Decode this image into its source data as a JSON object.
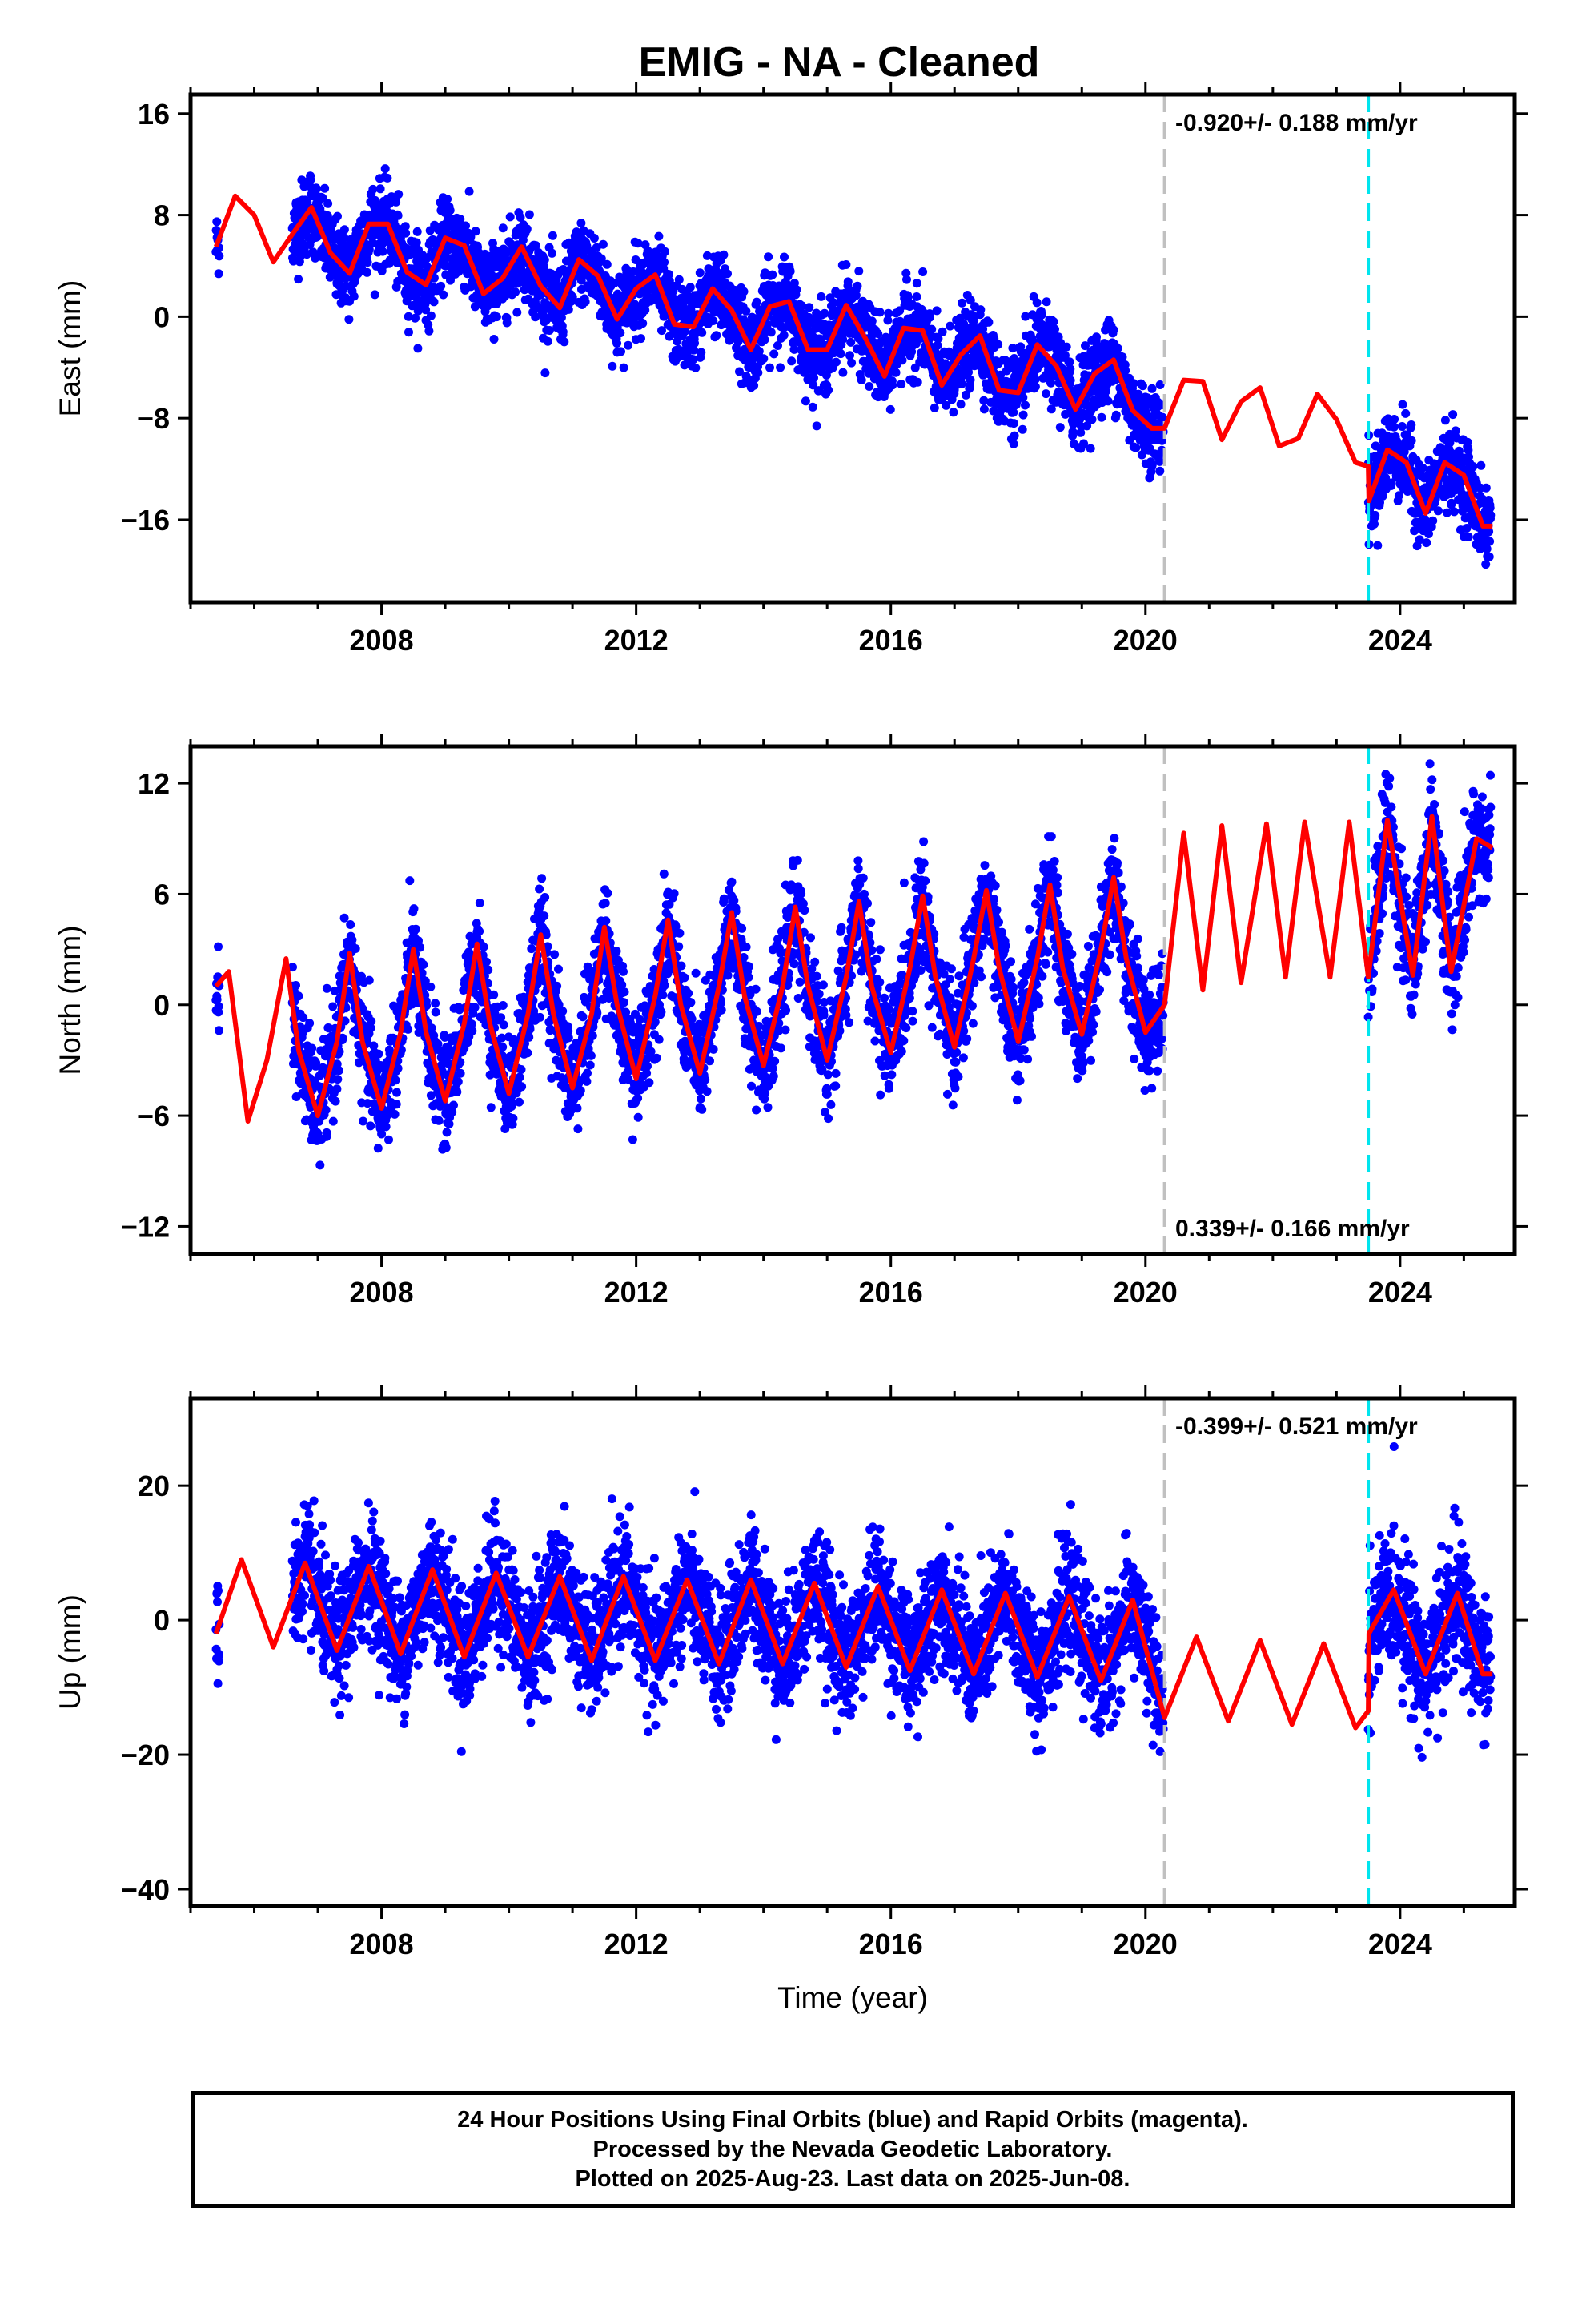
{
  "title": "EMIG  - NA - Cleaned",
  "footer": {
    "line1": "24 Hour Positions Using Final Orbits (blue) and Rapid Orbits (magenta).",
    "line2": "Processed by the Nevada Geodetic Laboratory.",
    "line3": "Plotted on 2025-Aug-23. Last data on 2025-Jun-08."
  },
  "colors": {
    "final_orbits": "#0000ff",
    "model": "#ff0000",
    "break_equipment": "#c0c0c0",
    "break_event": "#00e5ee"
  },
  "xlabel": "Time (year)",
  "chart_data": [
    {
      "type": "scatter",
      "name_panel": "east",
      "ylabel": "East (mm)",
      "xlim": [
        2005.0,
        2025.8
      ],
      "ylim": [
        -22.5,
        17.5
      ],
      "x_ticks": [
        2008,
        2012,
        2016,
        2020,
        2024
      ],
      "y_ticks": [
        16,
        8,
        0,
        -8,
        -16
      ],
      "rate_label": "-0.920+/- 0.188 mm/yr",
      "rate_position": "top-right",
      "breaks": [
        {
          "x": 2020.3,
          "color": "#c0c0c0"
        },
        {
          "x": 2023.5,
          "color": "#00e5ee"
        }
      ],
      "model": {
        "x": [
          2005.4,
          2005.7,
          2006.0,
          2006.3,
          2006.6,
          2006.9,
          2007.2,
          2007.5,
          2007.8,
          2008.1,
          2008.4,
          2008.7,
          2009.0,
          2009.3,
          2009.6,
          2009.9,
          2010.2,
          2010.5,
          2010.8,
          2011.1,
          2011.4,
          2011.7,
          2012.0,
          2012.3,
          2012.6,
          2012.9,
          2013.2,
          2013.5,
          2013.8,
          2014.1,
          2014.4,
          2014.7,
          2015.0,
          2015.3,
          2015.6,
          2015.9,
          2016.2,
          2016.5,
          2016.8,
          2017.1,
          2017.4,
          2017.7,
          2018.0,
          2018.3,
          2018.6,
          2018.9,
          2019.2,
          2019.5,
          2019.8,
          2020.1,
          2020.3,
          2020.6,
          2020.9,
          2021.2,
          2021.5,
          2021.8,
          2022.1,
          2022.4,
          2022.7,
          2023.0,
          2023.3,
          2023.5,
          2023.51,
          2023.8,
          2024.1,
          2024.4,
          2024.7,
          2025.0,
          2025.3,
          2025.45
        ],
        "y": [
          5.5,
          9.5,
          8.0,
          4.3,
          6.5,
          8.6,
          5.0,
          3.4,
          7.3,
          7.3,
          3.5,
          2.5,
          6.2,
          5.6,
          1.8,
          3.0,
          5.5,
          2.4,
          0.7,
          4.5,
          3.2,
          -0.2,
          2.2,
          3.3,
          -0.6,
          -0.8,
          2.2,
          0.5,
          -2.6,
          0.8,
          1.2,
          -2.6,
          -2.6,
          0.9,
          -1.7,
          -4.7,
          -0.9,
          -1.1,
          -5.4,
          -3.0,
          -1.5,
          -5.8,
          -6.0,
          -2.2,
          -3.9,
          -7.3,
          -4.5,
          -3.4,
          -7.4,
          -8.8,
          -8.8,
          -5.0,
          -5.1,
          -9.7,
          -6.7,
          -5.6,
          -10.2,
          -9.6,
          -6.1,
          -8.1,
          -11.5,
          -11.8,
          -14.5,
          -10.5,
          -11.5,
          -15.5,
          -11.5,
          -12.5,
          -16.5,
          -16.5
        ]
      },
      "observations": [
        {
          "start": 2005.4,
          "end": 2005.45,
          "trend_start": 3.0,
          "trend_end": 3.0,
          "scatter": 1.3
        },
        {
          "start": 2006.6,
          "end": 2020.28,
          "trend_start": 6.3,
          "trend_end": -6.3,
          "scatter": 1.6
        },
        {
          "start": 2023.5,
          "end": 2025.42,
          "trend_start": -13.0,
          "trend_end": -14.6,
          "scatter": 1.6
        }
      ]
    },
    {
      "type": "scatter",
      "name_panel": "north",
      "ylabel": "North (mm)",
      "xlim": [
        2005.0,
        2025.8
      ],
      "ylim": [
        -13.5,
        14.0
      ],
      "x_ticks": [
        2008,
        2012,
        2016,
        2020,
        2024
      ],
      "y_ticks": [
        12,
        6,
        0,
        -6,
        -12
      ],
      "rate_label": "0.339+/- 0.166 mm/yr",
      "rate_position": "bottom-right",
      "breaks": [
        {
          "x": 2020.3,
          "color": "#c0c0c0"
        },
        {
          "x": 2023.5,
          "color": "#00e5ee"
        }
      ],
      "model": {
        "x": [
          2005.4,
          2005.6,
          2005.9,
          2006.2,
          2006.5,
          2006.7,
          2007.0,
          2007.3,
          2007.5,
          2007.7,
          2008.0,
          2008.3,
          2008.5,
          2008.7,
          2009.0,
          2009.3,
          2009.5,
          2009.7,
          2010.0,
          2010.3,
          2010.5,
          2010.7,
          2011.0,
          2011.3,
          2011.5,
          2011.7,
          2012.0,
          2012.3,
          2012.5,
          2012.7,
          2013.0,
          2013.3,
          2013.5,
          2013.7,
          2014.0,
          2014.3,
          2014.5,
          2014.7,
          2015.0,
          2015.3,
          2015.5,
          2015.7,
          2016.0,
          2016.3,
          2016.5,
          2016.7,
          2017.0,
          2017.3,
          2017.5,
          2017.7,
          2018.0,
          2018.3,
          2018.5,
          2018.7,
          2019.0,
          2019.3,
          2019.5,
          2019.7,
          2020.0,
          2020.3,
          2020.6,
          2020.9,
          2021.2,
          2021.5,
          2021.9,
          2022.2,
          2022.5,
          2022.9,
          2023.2,
          2023.5,
          2023.8,
          2024.2,
          2024.5,
          2024.8,
          2025.2,
          2025.45
        ],
        "y": [
          1.0,
          1.8,
          -6.3,
          -3.0,
          2.5,
          -2.5,
          -6.0,
          -2.0,
          2.8,
          -2.0,
          -5.6,
          -1.5,
          3.0,
          -1.5,
          -5.2,
          -1.0,
          3.3,
          -1.0,
          -4.8,
          -0.5,
          3.8,
          -0.5,
          -4.5,
          -0.5,
          4.2,
          0.0,
          -4.0,
          0.5,
          4.6,
          0.0,
          -3.7,
          1.0,
          5.0,
          0.5,
          -3.3,
          1.0,
          5.3,
          1.0,
          -3.0,
          1.5,
          5.6,
          1.0,
          -2.6,
          2.0,
          5.9,
          1.5,
          -2.3,
          2.5,
          6.2,
          2.0,
          -2.0,
          2.5,
          6.5,
          2.0,
          -1.6,
          3.0,
          6.9,
          2.5,
          -1.5,
          0.0,
          9.3,
          0.8,
          9.7,
          1.2,
          9.8,
          1.5,
          9.9,
          1.5,
          9.9,
          1.5,
          10.0,
          1.6,
          10.2,
          1.8,
          9.0,
          8.5
        ]
      },
      "observations": [
        {
          "start": 2005.4,
          "end": 2005.45,
          "trend_start": 3.0,
          "trend_end": 3.0,
          "scatter": 1.3
        },
        {
          "start": 2006.6,
          "end": 2020.28,
          "trend_start": -1.5,
          "trend_end": 2.5,
          "scatter": 1.4
        },
        {
          "start": 2023.5,
          "end": 2025.42,
          "trend_start": 5.0,
          "trend_end": 5.5,
          "scatter": 1.6
        }
      ]
    },
    {
      "type": "scatter",
      "name_panel": "up",
      "ylabel": "Up (mm)",
      "xlim": [
        2005.0,
        2025.8
      ],
      "ylim": [
        -42.5,
        33.0
      ],
      "x_ticks": [
        2008,
        2012,
        2016,
        2020,
        2024
      ],
      "y_ticks": [
        20,
        0,
        -20,
        -40
      ],
      "rate_label": "-0.399+/- 0.521 mm/yr",
      "rate_position": "top-right",
      "breaks": [
        {
          "x": 2020.3,
          "color": "#c0c0c0"
        },
        {
          "x": 2023.5,
          "color": "#00e5ee"
        }
      ],
      "model": {
        "x": [
          2005.4,
          2005.8,
          2006.3,
          2006.8,
          2007.3,
          2007.8,
          2008.3,
          2008.8,
          2009.3,
          2009.8,
          2010.3,
          2010.8,
          2011.3,
          2011.8,
          2012.3,
          2012.8,
          2013.3,
          2013.8,
          2014.3,
          2014.8,
          2015.3,
          2015.8,
          2016.3,
          2016.8,
          2017.3,
          2017.8,
          2018.3,
          2018.8,
          2019.3,
          2019.8,
          2020.3,
          2020.8,
          2021.3,
          2021.8,
          2022.3,
          2022.8,
          2023.3,
          2023.5,
          2023.51,
          2023.9,
          2024.4,
          2024.9,
          2025.3,
          2025.45
        ],
        "y": [
          -2.0,
          9.0,
          -4.0,
          8.5,
          -4.5,
          8.0,
          -5.0,
          7.5,
          -5.5,
          7.0,
          -5.5,
          6.5,
          -6.0,
          6.5,
          -6.0,
          6.0,
          -6.5,
          6.0,
          -6.5,
          5.5,
          -7.0,
          5.0,
          -7.5,
          4.5,
          -8.0,
          4.0,
          -8.5,
          3.5,
          -9.0,
          3.0,
          -14.5,
          -2.5,
          -15.0,
          -3.0,
          -15.5,
          -3.5,
          -16.0,
          -13.5,
          -2.0,
          4.5,
          -8.0,
          4.0,
          -8.0,
          -8.0
        ]
      },
      "observations": [
        {
          "start": 2005.4,
          "end": 2005.45,
          "trend_start": -3.0,
          "trend_end": -3.0,
          "scatter": 5.0
        },
        {
          "start": 2006.6,
          "end": 2020.28,
          "trend_start": 2.0,
          "trend_end": -3.0,
          "scatter": 4.5
        },
        {
          "start": 2023.5,
          "end": 2025.42,
          "trend_start": 0.0,
          "trend_end": -2.0,
          "scatter": 5.0
        }
      ]
    }
  ]
}
